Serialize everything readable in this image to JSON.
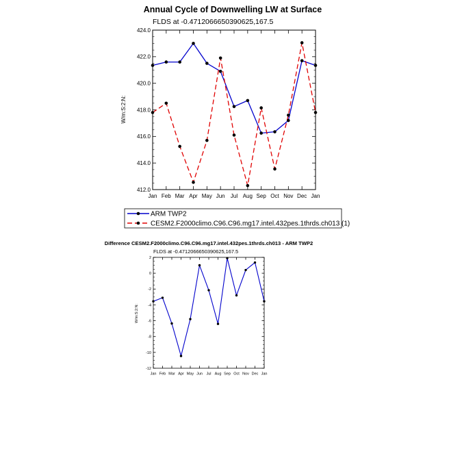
{
  "chart_data": [
    {
      "type": "line",
      "title": "Annual Cycle of Downwelling LW at Surface",
      "subtitle": "FLDS at -0.4712066650390625,167.5",
      "ylabel": "W/m:S:2:N:",
      "xlabel": "",
      "categories": [
        "Jan",
        "Feb",
        "Mar",
        "Apr",
        "May",
        "Jun",
        "Jul",
        "Aug",
        "Sep",
        "Oct",
        "Nov",
        "Dec",
        "Jan"
      ],
      "ylim": [
        412.0,
        424.0
      ],
      "yticks": [
        "412.0",
        "414.0",
        "416.0",
        "418.0",
        "420.0",
        "422.0",
        "424.0"
      ],
      "ytick_values": [
        412,
        414,
        416,
        418,
        420,
        422,
        424
      ],
      "series": [
        {
          "name": "ARM TWP2",
          "color": "#0000cc",
          "dash": "",
          "values": [
            421.35,
            421.6,
            421.6,
            423.0,
            421.5,
            420.9,
            418.25,
            418.7,
            416.25,
            416.35,
            417.2,
            421.7,
            421.35
          ]
        },
        {
          "name": "CESM2.F2000climo.C96.C96.mg17.intel.432pes.1thrds.ch013 (1)",
          "color": "#e00000",
          "dash": "7,4",
          "values": [
            417.8,
            418.5,
            415.25,
            412.55,
            415.7,
            421.9,
            416.1,
            412.3,
            418.15,
            413.55,
            417.6,
            423.05,
            417.8
          ]
        }
      ],
      "legend": {
        "position": "below",
        "entries": [
          "ARM TWP2",
          "CESM2.F2000climo.C96.C96.mg17.intel.432pes.1thrds.ch013 (1)"
        ]
      }
    },
    {
      "type": "line",
      "title": "Difference CESM2.F2000climo.C96.C96.mg17.intel.432pes.1thrds.ch013 - ARM TWP2",
      "subtitle": "FLDS at -0.4712066650390625,167.5",
      "ylabel": "W/m:S:2:N:",
      "xlabel": "",
      "categories": [
        "Jan",
        "Feb",
        "Mar",
        "Apr",
        "May",
        "Jun",
        "Jul",
        "Aug",
        "Sep",
        "Oct",
        "Nov",
        "Dec",
        "Jan"
      ],
      "ylim": [
        -12,
        2
      ],
      "yticks": [
        "-12",
        "-10",
        "-8",
        "-6",
        "-4",
        "-2",
        "0",
        "2"
      ],
      "ytick_values": [
        -12,
        -10,
        -8,
        -6,
        -4,
        -2,
        0,
        2
      ],
      "series": [
        {
          "name": "Difference",
          "color": "#0000cc",
          "dash": "",
          "values": [
            -3.55,
            -3.1,
            -6.35,
            -10.45,
            -5.8,
            1.0,
            -2.15,
            -6.4,
            1.9,
            -2.8,
            0.4,
            1.35,
            -3.55
          ]
        }
      ]
    }
  ]
}
